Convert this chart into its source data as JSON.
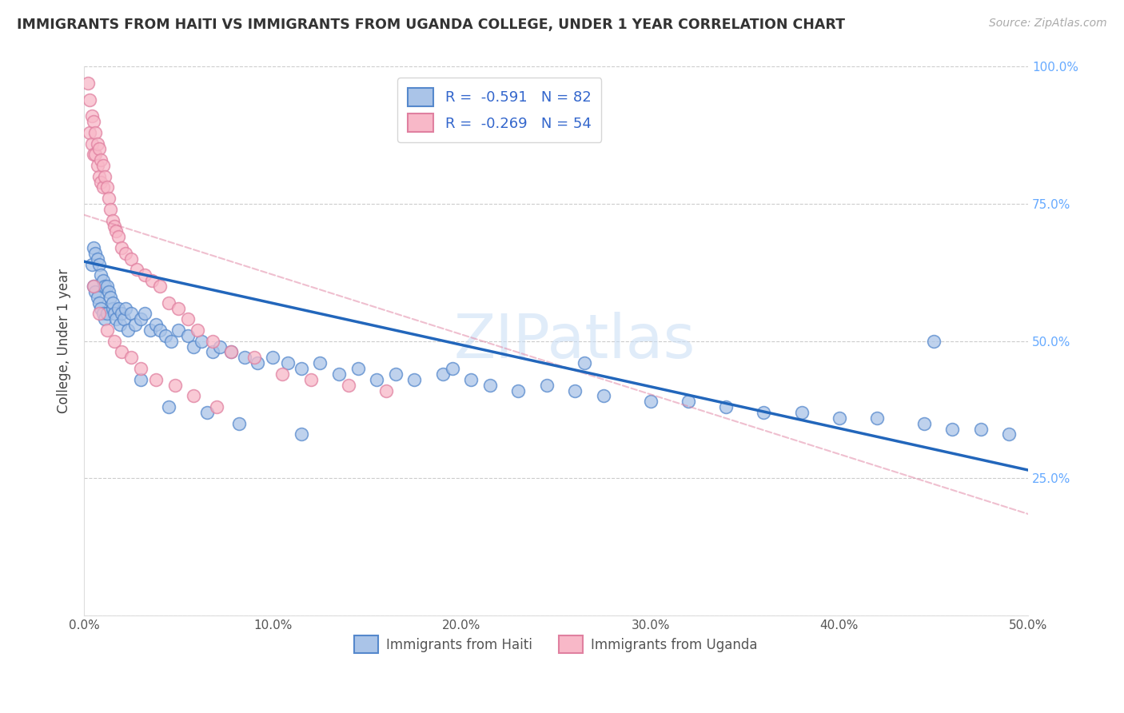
{
  "title": "IMMIGRANTS FROM HAITI VS IMMIGRANTS FROM UGANDA COLLEGE, UNDER 1 YEAR CORRELATION CHART",
  "source": "Source: ZipAtlas.com",
  "xlabel_haiti": "Immigrants from Haiti",
  "xlabel_uganda": "Immigrants from Uganda",
  "ylabel": "College, Under 1 year",
  "xlim": [
    0.0,
    0.5
  ],
  "ylim": [
    0.0,
    1.0
  ],
  "haiti_R": -0.591,
  "haiti_N": 82,
  "uganda_R": -0.269,
  "uganda_N": 54,
  "haiti_color": "#aac4e8",
  "haiti_edge_color": "#5588cc",
  "haiti_line_color": "#2266bb",
  "uganda_color": "#f8b8c8",
  "uganda_edge_color": "#e080a0",
  "uganda_line_color": "#e06080",
  "watermark": "ZIPatlas",
  "right_tick_color": "#66aaff",
  "haiti_x": [
    0.004,
    0.005,
    0.005,
    0.006,
    0.006,
    0.007,
    0.007,
    0.008,
    0.008,
    0.009,
    0.009,
    0.01,
    0.01,
    0.011,
    0.011,
    0.012,
    0.012,
    0.013,
    0.014,
    0.015,
    0.015,
    0.016,
    0.017,
    0.018,
    0.019,
    0.02,
    0.021,
    0.022,
    0.023,
    0.025,
    0.027,
    0.03,
    0.032,
    0.035,
    0.038,
    0.04,
    0.043,
    0.046,
    0.05,
    0.055,
    0.058,
    0.062,
    0.068,
    0.072,
    0.078,
    0.085,
    0.092,
    0.1,
    0.108,
    0.115,
    0.125,
    0.135,
    0.145,
    0.155,
    0.165,
    0.175,
    0.19,
    0.205,
    0.215,
    0.23,
    0.245,
    0.26,
    0.275,
    0.3,
    0.32,
    0.34,
    0.36,
    0.38,
    0.4,
    0.42,
    0.445,
    0.46,
    0.475,
    0.49,
    0.03,
    0.045,
    0.065,
    0.082,
    0.115,
    0.195,
    0.265,
    0.45
  ],
  "haiti_y": [
    0.64,
    0.67,
    0.6,
    0.66,
    0.59,
    0.65,
    0.58,
    0.64,
    0.57,
    0.62,
    0.56,
    0.61,
    0.55,
    0.6,
    0.54,
    0.6,
    0.55,
    0.59,
    0.58,
    0.56,
    0.57,
    0.55,
    0.54,
    0.56,
    0.53,
    0.55,
    0.54,
    0.56,
    0.52,
    0.55,
    0.53,
    0.54,
    0.55,
    0.52,
    0.53,
    0.52,
    0.51,
    0.5,
    0.52,
    0.51,
    0.49,
    0.5,
    0.48,
    0.49,
    0.48,
    0.47,
    0.46,
    0.47,
    0.46,
    0.45,
    0.46,
    0.44,
    0.45,
    0.43,
    0.44,
    0.43,
    0.44,
    0.43,
    0.42,
    0.41,
    0.42,
    0.41,
    0.4,
    0.39,
    0.39,
    0.38,
    0.37,
    0.37,
    0.36,
    0.36,
    0.35,
    0.34,
    0.34,
    0.33,
    0.43,
    0.38,
    0.37,
    0.35,
    0.33,
    0.45,
    0.46,
    0.5
  ],
  "uganda_x": [
    0.002,
    0.003,
    0.003,
    0.004,
    0.004,
    0.005,
    0.005,
    0.006,
    0.006,
    0.007,
    0.007,
    0.008,
    0.008,
    0.009,
    0.009,
    0.01,
    0.01,
    0.011,
    0.012,
    0.013,
    0.014,
    0.015,
    0.016,
    0.017,
    0.018,
    0.02,
    0.022,
    0.025,
    0.028,
    0.032,
    0.036,
    0.04,
    0.045,
    0.05,
    0.055,
    0.06,
    0.068,
    0.078,
    0.09,
    0.105,
    0.12,
    0.14,
    0.16,
    0.005,
    0.008,
    0.012,
    0.016,
    0.02,
    0.025,
    0.03,
    0.038,
    0.048,
    0.058,
    0.07
  ],
  "uganda_y": [
    0.97,
    0.94,
    0.88,
    0.91,
    0.86,
    0.9,
    0.84,
    0.88,
    0.84,
    0.86,
    0.82,
    0.85,
    0.8,
    0.83,
    0.79,
    0.82,
    0.78,
    0.8,
    0.78,
    0.76,
    0.74,
    0.72,
    0.71,
    0.7,
    0.69,
    0.67,
    0.66,
    0.65,
    0.63,
    0.62,
    0.61,
    0.6,
    0.57,
    0.56,
    0.54,
    0.52,
    0.5,
    0.48,
    0.47,
    0.44,
    0.43,
    0.42,
    0.41,
    0.6,
    0.55,
    0.52,
    0.5,
    0.48,
    0.47,
    0.45,
    0.43,
    0.42,
    0.4,
    0.38
  ],
  "haiti_line_x0": 0.0,
  "haiti_line_y0": 0.645,
  "haiti_line_x1": 0.5,
  "haiti_line_y1": 0.265,
  "uganda_line_x0": 0.0,
  "uganda_line_y0": 0.73,
  "uganda_line_x1": 0.5,
  "uganda_line_y1": 0.185
}
